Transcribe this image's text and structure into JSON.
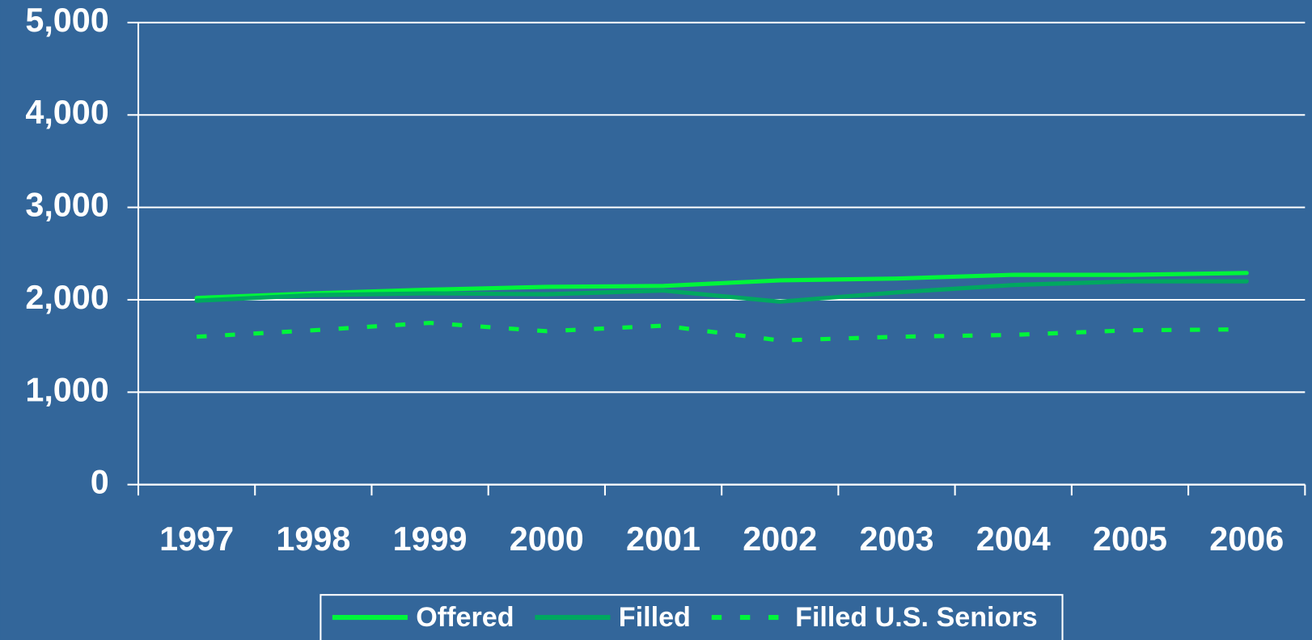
{
  "chart_data": {
    "type": "line",
    "categories": [
      "1997",
      "1998",
      "1999",
      "2000",
      "2001",
      "2002",
      "2003",
      "2004",
      "2005",
      "2006"
    ],
    "series": [
      {
        "name": "Offered",
        "color": "#00f53a",
        "dashed": false,
        "values": [
          2020,
          2070,
          2110,
          2140,
          2150,
          2210,
          2230,
          2270,
          2270,
          2290
        ]
      },
      {
        "name": "Filled",
        "color": "#00a860",
        "dashed": false,
        "values": [
          1990,
          2050,
          2070,
          2060,
          2100,
          1980,
          2080,
          2160,
          2200,
          2200
        ]
      },
      {
        "name": "Filled U.S. Seniors",
        "color": "#00f53a",
        "dashed": true,
        "values": [
          1600,
          1670,
          1750,
          1660,
          1720,
          1560,
          1600,
          1620,
          1670,
          1680
        ]
      }
    ],
    "ylim": [
      0,
      5000
    ],
    "yticks": [
      0,
      {
        "value": 1000,
        "label": "1,000"
      },
      {
        "value": 2000,
        "label": "2,000"
      },
      {
        "value": 3000,
        "label": "3,000"
      },
      {
        "value": 4000,
        "label": "4,000"
      },
      {
        "value": 5000,
        "label": "5,000"
      }
    ],
    "grid": true,
    "legend": "bottom"
  }
}
